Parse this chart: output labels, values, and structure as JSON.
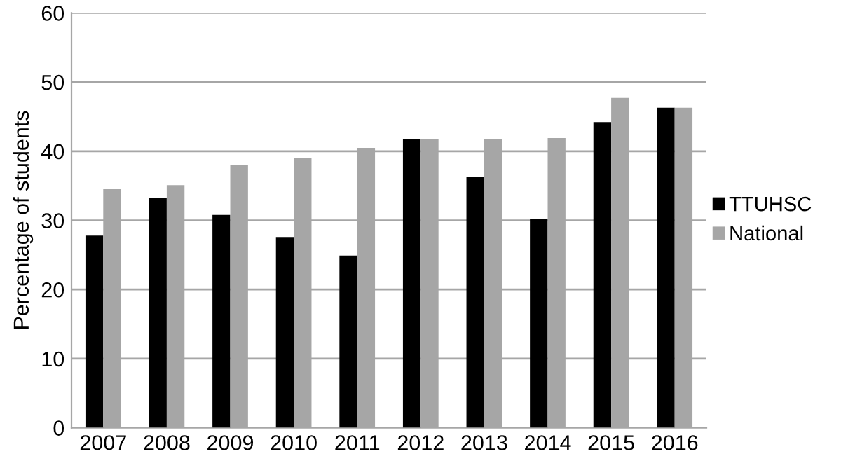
{
  "chart_data": {
    "type": "bar",
    "ylabel": "Percentage of students",
    "categories": [
      "2007",
      "2008",
      "2009",
      "2010",
      "2011",
      "2012",
      "2013",
      "2014",
      "2015",
      "2016"
    ],
    "series": [
      {
        "name": "TTUHSC",
        "color": "#000000",
        "values": [
          27.8,
          33.2,
          30.8,
          27.6,
          24.9,
          41.7,
          36.3,
          30.2,
          44.2,
          46.3
        ]
      },
      {
        "name": "National",
        "color": "#a6a6a6",
        "values": [
          34.5,
          35.1,
          38.0,
          39.0,
          40.5,
          41.7,
          41.7,
          41.9,
          47.7,
          46.3
        ]
      }
    ],
    "ylim": [
      0,
      60
    ],
    "yticks": [
      0,
      10,
      20,
      30,
      40,
      50,
      60
    ],
    "grid": "y",
    "legend": "right"
  }
}
